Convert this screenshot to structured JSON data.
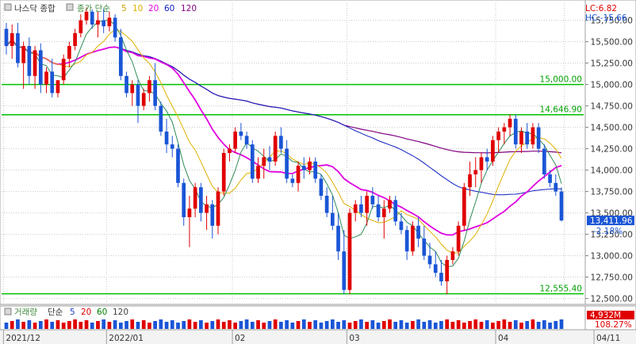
{
  "legend": {
    "title": "나스닥 종합",
    "ma_prefix": "종가 단순",
    "ma": [
      {
        "period": "5",
        "color": "#c9a000"
      },
      {
        "period": "10",
        "color": "#e0b000"
      },
      {
        "period": "20",
        "color": "#e000e0"
      },
      {
        "period": "60",
        "color": "#1020c0"
      },
      {
        "period": "120",
        "color": "#800080"
      }
    ]
  },
  "volume_legend": {
    "title": "거래량",
    "ma_prefix": "단순",
    "ma": [
      {
        "period": "5",
        "color": "#2040c0"
      },
      {
        "period": "20",
        "color": "#e00000"
      },
      {
        "period": "60",
        "color": "#008000"
      },
      {
        "period": "120",
        "color": "#404040"
      }
    ],
    "value_text": "4,932M",
    "pct_text": "108.27%"
  },
  "info": {
    "lc": "LC:6.82",
    "hc": "HC:-15.66"
  },
  "current": {
    "price": "13,411.96",
    "change": "-2.18%",
    "price_value": 13411.96
  },
  "colors": {
    "up": "#e00000",
    "down": "#1a55d6",
    "hline": "#00c000",
    "grid": "#c8c8c8"
  },
  "chart_data": {
    "type": "candlestick",
    "ylim": [
      12450,
      15950
    ],
    "yticks": [
      15750,
      15500,
      15250,
      15000,
      14750,
      14500,
      14250,
      14000,
      13750,
      13500,
      13250,
      13000,
      12750,
      12500
    ],
    "ytick_labels": [
      "15,750.00",
      "15,500.00",
      "15,250.00",
      "15,000.00",
      "14,750.00",
      "14,500.00",
      "14,250.00",
      "14,000.00",
      "13,750.00",
      "13,500.00",
      "13,250.00",
      "13,000.00",
      "12,750.00",
      "12,500.00"
    ],
    "x_labels": [
      {
        "index": 0,
        "text": "2021/12"
      },
      {
        "index": 18,
        "text": "2022/01"
      },
      {
        "index": 40,
        "text": "02"
      },
      {
        "index": 60,
        "text": "03"
      },
      {
        "index": 86,
        "text": "04"
      },
      {
        "index": 98,
        "text": "04/11"
      }
    ],
    "horizontal_lines": [
      {
        "value": 15000.0,
        "label": "15,000.00"
      },
      {
        "value": 14646.9,
        "label": "14,646.90"
      },
      {
        "value": 12555.4,
        "label": "12,555.40"
      }
    ],
    "ohlc": [
      [
        15650,
        15720,
        15350,
        15450
      ],
      [
        15450,
        15700,
        15300,
        15600
      ],
      [
        15600,
        15720,
        15200,
        15250
      ],
      [
        15250,
        15500,
        14950,
        15450
      ],
      [
        15450,
        15550,
        15000,
        15100
      ],
      [
        15100,
        15450,
        14950,
        15400
      ],
      [
        15400,
        15480,
        14900,
        15000
      ],
      [
        15000,
        15200,
        14900,
        15150
      ],
      [
        15150,
        15300,
        14850,
        14900
      ],
      [
        14900,
        15050,
        14850,
        15050
      ],
      [
        15050,
        15350,
        15000,
        15300
      ],
      [
        15300,
        15500,
        15200,
        15450
      ],
      [
        15450,
        15650,
        15400,
        15600
      ],
      [
        15600,
        15820,
        15550,
        15750
      ],
      [
        15750,
        15900,
        15700,
        15850
      ],
      [
        15850,
        15880,
        15650,
        15700
      ],
      [
        15700,
        15850,
        15550,
        15750
      ],
      [
        15750,
        15880,
        15600,
        15680
      ],
      [
        15680,
        15850,
        15620,
        15780
      ],
      [
        15780,
        15820,
        15500,
        15550
      ],
      [
        15550,
        15650,
        15050,
        15100
      ],
      [
        15100,
        15150,
        14850,
        14900
      ],
      [
        14900,
        15050,
        14750,
        15000
      ],
      [
        15000,
        15050,
        14550,
        14750
      ],
      [
        14750,
        14950,
        14700,
        14900
      ],
      [
        14900,
        15100,
        14800,
        15050
      ],
      [
        15050,
        15250,
        14700,
        14750
      ],
      [
        14750,
        14800,
        14400,
        14450
      ],
      [
        14450,
        14600,
        14200,
        14300
      ],
      [
        14300,
        14400,
        14150,
        14250
      ],
      [
        14250,
        14300,
        13800,
        13850
      ],
      [
        13850,
        13900,
        13350,
        13450
      ],
      [
        13450,
        13700,
        13100,
        13550
      ],
      [
        13550,
        13850,
        13450,
        13800
      ],
      [
        13800,
        13850,
        13400,
        13500
      ],
      [
        13500,
        13700,
        13300,
        13600
      ],
      [
        13600,
        13650,
        13200,
        13350
      ],
      [
        13350,
        13800,
        13250,
        13750
      ],
      [
        13750,
        14250,
        13700,
        14200
      ],
      [
        14200,
        14300,
        14100,
        14250
      ],
      [
        14250,
        14500,
        14200,
        14450
      ],
      [
        14450,
        14550,
        14350,
        14400
      ],
      [
        14400,
        14450,
        14250,
        14300
      ],
      [
        14300,
        14350,
        13850,
        13900
      ],
      [
        13900,
        14150,
        13850,
        14050
      ],
      [
        14050,
        14250,
        13900,
        14150
      ],
      [
        14150,
        14280,
        14000,
        14100
      ],
      [
        14100,
        14450,
        14050,
        14400
      ],
      [
        14400,
        14500,
        14200,
        14250
      ],
      [
        14250,
        14350,
        13850,
        13900
      ],
      [
        13900,
        13950,
        13800,
        13850
      ],
      [
        13850,
        14100,
        13750,
        14050
      ],
      [
        14050,
        14150,
        13900,
        14000
      ],
      [
        14000,
        14150,
        13950,
        14100
      ],
      [
        14100,
        14150,
        13850,
        13900
      ],
      [
        13900,
        13950,
        13650,
        13700
      ],
      [
        13700,
        13800,
        13450,
        13500
      ],
      [
        13500,
        13700,
        13300,
        13350
      ],
      [
        13350,
        13500,
        12950,
        13050
      ],
      [
        13050,
        13300,
        12550,
        12600
      ],
      [
        12600,
        13550,
        12550,
        13500
      ],
      [
        13500,
        13650,
        13400,
        13600
      ],
      [
        13600,
        13700,
        13450,
        13500
      ],
      [
        13500,
        13750,
        13350,
        13700
      ],
      [
        13700,
        13800,
        13550,
        13600
      ],
      [
        13600,
        13700,
        13400,
        13450
      ],
      [
        13450,
        13650,
        13200,
        13550
      ],
      [
        13550,
        13700,
        13500,
        13650
      ],
      [
        13650,
        13700,
        13350,
        13400
      ],
      [
        13400,
        13500,
        13250,
        13300
      ],
      [
        13300,
        13350,
        12950,
        13050
      ],
      [
        13050,
        13400,
        13000,
        13350
      ],
      [
        13350,
        13450,
        13100,
        13200
      ],
      [
        13200,
        13350,
        12950,
        13000
      ],
      [
        13000,
        13150,
        12850,
        12900
      ],
      [
        12900,
        13050,
        12750,
        12800
      ],
      [
        12800,
        12950,
        12650,
        12700
      ],
      [
        12700,
        13000,
        12550,
        12950
      ],
      [
        12950,
        13100,
        12900,
        13050
      ],
      [
        13050,
        13400,
        13000,
        13350
      ],
      [
        13350,
        13850,
        13300,
        13800
      ],
      [
        13800,
        14100,
        13700,
        13950
      ],
      [
        13950,
        14150,
        13800,
        14000
      ],
      [
        14000,
        14200,
        13850,
        14150
      ],
      [
        14150,
        14250,
        14000,
        14100
      ],
      [
        14100,
        14400,
        14050,
        14350
      ],
      [
        14350,
        14500,
        14200,
        14450
      ],
      [
        14450,
        14550,
        14300,
        14500
      ],
      [
        14500,
        14650,
        14400,
        14600
      ],
      [
        14600,
        14650,
        14250,
        14300
      ],
      [
        14300,
        14500,
        14200,
        14450
      ],
      [
        14450,
        14550,
        14250,
        14300
      ],
      [
        14300,
        14550,
        14250,
        14500
      ],
      [
        14500,
        14550,
        14200,
        14250
      ],
      [
        14250,
        14300,
        13900,
        13950
      ],
      [
        13950,
        14000,
        13800,
        13850
      ],
      [
        13850,
        13950,
        13700,
        13750
      ],
      [
        13750,
        13800,
        13400,
        13412
      ]
    ]
  }
}
